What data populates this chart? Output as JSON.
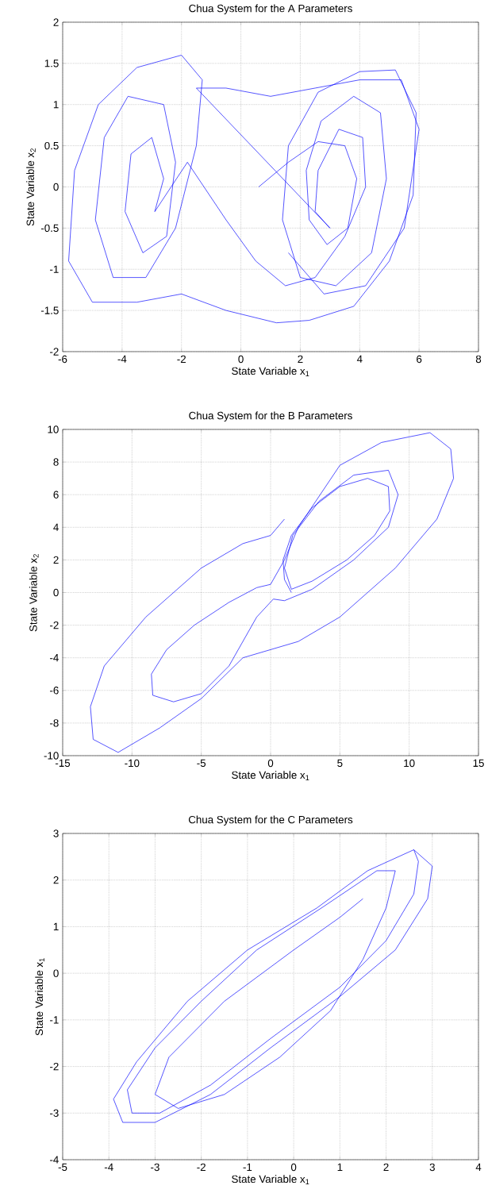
{
  "chart_data": [
    {
      "type": "line",
      "title": "Chua System for the A Parameters",
      "xlabel": "State Variable x$_{1}$",
      "ylabel": "State Variable x$_{2}$",
      "xlim": [
        -6,
        8
      ],
      "ylim": [
        -2,
        2
      ],
      "xticks": [
        -6,
        -4,
        -2,
        0,
        2,
        4,
        6,
        8
      ],
      "yticks": [
        -2,
        -1.5,
        -1,
        -0.5,
        0,
        0.5,
        1,
        1.5,
        2
      ],
      "grid": true,
      "series": [
        {
          "color": "#0000ff",
          "x": [
            0.6,
            1.6,
            2.6,
            3.5,
            3.9,
            3.6,
            2.9,
            2.3,
            2.2,
            2.7,
            3.8,
            4.7,
            4.9,
            4.4,
            3.2,
            2.0,
            1.4,
            1.6,
            2.6,
            4.0,
            5.2,
            5.9,
            5.8,
            5.0,
            3.8,
            2.3,
            1.2,
            -0.5,
            -2.0,
            -3.5,
            -5.0,
            -5.8,
            -5.6,
            -4.8,
            -3.5,
            -2.0,
            -1.3,
            -1.5,
            -2.2,
            -3.2,
            -4.3,
            -4.9,
            -4.6,
            -3.8,
            -2.6,
            -2.2,
            -2.5,
            -3.3,
            -3.9,
            -3.7,
            -3.0,
            -2.6,
            -2.9,
            -1.8,
            -0.5,
            0.5,
            1.5,
            2.5,
            3.5,
            4.2,
            4.1,
            3.3,
            2.6,
            2.5,
            3.0,
            -1.5,
            -0.5,
            1.0,
            2.5,
            4.0,
            5.4,
            6.0,
            5.5,
            4.2,
            2.8,
            1.6
          ],
          "values": [
            0.0,
            0.3,
            0.55,
            0.5,
            0.1,
            -0.5,
            -0.7,
            -0.4,
            0.2,
            0.8,
            1.1,
            0.9,
            0.1,
            -0.8,
            -1.2,
            -1.1,
            -0.4,
            0.5,
            1.15,
            1.4,
            1.42,
            0.9,
            -0.1,
            -0.9,
            -1.45,
            -1.62,
            -1.65,
            -1.5,
            -1.3,
            -1.4,
            -1.4,
            -0.9,
            0.2,
            1.0,
            1.45,
            1.6,
            1.3,
            0.5,
            -0.5,
            -1.1,
            -1.1,
            -0.4,
            0.6,
            1.1,
            1.0,
            0.3,
            -0.6,
            -0.8,
            -0.3,
            0.4,
            0.6,
            0.1,
            -0.3,
            0.3,
            -0.4,
            -0.9,
            -1.2,
            -1.1,
            -0.6,
            0.0,
            0.6,
            0.7,
            0.2,
            -0.3,
            -0.5,
            1.2,
            1.2,
            1.1,
            1.2,
            1.3,
            1.3,
            0.7,
            -0.5,
            -1.2,
            -1.3,
            -0.8
          ]
        }
      ]
    },
    {
      "type": "line",
      "title": "Chua System for the B Parameters",
      "xlabel": "State Variable x$_{1}$",
      "ylabel": "State Variable x$_{2}$",
      "xlim": [
        -15,
        15
      ],
      "ylim": [
        -10,
        10
      ],
      "xticks": [
        -15,
        -10,
        -5,
        0,
        5,
        10,
        15
      ],
      "yticks": [
        -10,
        -8,
        -6,
        -4,
        -2,
        0,
        2,
        4,
        6,
        8,
        10
      ],
      "grid": true,
      "series": [
        {
          "color": "#0000ff",
          "x": [
            1.5,
            1.0,
            0.9,
            1.5,
            3.0,
            5.0,
            7.0,
            8.5,
            8.6,
            7.5,
            5.5,
            3.0,
            1.5,
            1.0,
            1.6,
            3.5,
            6.0,
            8.5,
            9.2,
            8.5,
            6.0,
            3.0,
            1.0,
            0.2,
            -1.0,
            -3.0,
            -5.0,
            -7.0,
            -8.5,
            -8.6,
            -7.5,
            -5.5,
            -3.0,
            -1.0,
            0.0,
            1.0,
            2.0,
            5.0,
            8.0,
            11.5,
            13.0,
            13.2,
            12.0,
            9.0,
            5.0,
            2.0,
            0.0,
            -2.0,
            -5.0,
            -8.0,
            -11.0,
            -12.8,
            -13.0,
            -12.0,
            -9.0,
            -5.0,
            -2.0,
            0.0,
            1.0
          ],
          "values": [
            0.0,
            0.8,
            2.0,
            3.5,
            5.2,
            6.5,
            7.0,
            6.5,
            5.0,
            3.5,
            2.0,
            0.7,
            0.2,
            1.5,
            3.5,
            5.6,
            7.2,
            7.5,
            6.0,
            4.0,
            2.0,
            0.2,
            -0.5,
            -0.4,
            -1.5,
            -4.5,
            -6.2,
            -6.7,
            -6.3,
            -5.0,
            -3.5,
            -2.0,
            -0.6,
            0.3,
            0.5,
            2.0,
            4.0,
            7.8,
            9.2,
            9.8,
            8.8,
            7.0,
            4.5,
            1.5,
            -1.5,
            -3.0,
            -3.5,
            -4.0,
            -6.5,
            -8.3,
            -9.8,
            -9.0,
            -7.0,
            -4.5,
            -1.5,
            1.5,
            3.0,
            3.5,
            4.5
          ]
        }
      ]
    },
    {
      "type": "line",
      "title": "Chua System for the C Parameters",
      "xlabel": "State Variable x$_{1}$",
      "ylabel": "State Variable x$_{1}$",
      "xlim": [
        -5,
        4
      ],
      "ylim": [
        -4,
        3
      ],
      "xticks": [
        -5,
        -4,
        -3,
        -2,
        -1,
        0,
        1,
        2,
        3,
        4
      ],
      "yticks": [
        -4,
        -3,
        -2,
        -1,
        0,
        1,
        2,
        3
      ],
      "grid": true,
      "series": [
        {
          "color": "#0000ff",
          "x": [
            2.6,
            3.0,
            2.9,
            2.2,
            1.0,
            -0.5,
            -1.8,
            -3.0,
            -3.7,
            -3.9,
            -3.4,
            -2.3,
            -1.0,
            0.5,
            1.6,
            2.6,
            2.7,
            2.6,
            2.0,
            1.0,
            -0.5,
            -1.8,
            -2.9,
            -3.5,
            -3.6,
            -3.0,
            -2.0,
            -0.8,
            0.6,
            1.8,
            2.2,
            2.0,
            1.5,
            0.8,
            -0.3,
            -1.5,
            -2.5,
            -3.0,
            -2.7,
            -1.5,
            0.0,
            1.0,
            1.5
          ],
          "values": [
            2.65,
            2.3,
            1.6,
            0.5,
            -0.5,
            -1.6,
            -2.6,
            -3.2,
            -3.2,
            -2.7,
            -1.9,
            -0.6,
            0.5,
            1.4,
            2.2,
            2.65,
            2.4,
            1.7,
            0.7,
            -0.3,
            -1.4,
            -2.4,
            -3.0,
            -3.0,
            -2.5,
            -1.6,
            -0.6,
            0.5,
            1.4,
            2.2,
            2.2,
            1.4,
            0.3,
            -0.8,
            -1.8,
            -2.6,
            -2.9,
            -2.6,
            -1.8,
            -0.6,
            0.5,
            1.2,
            1.6
          ]
        }
      ]
    }
  ]
}
